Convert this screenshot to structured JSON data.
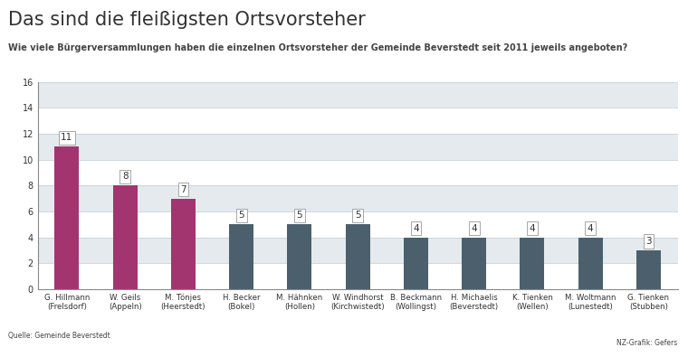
{
  "chart_data": {
    "type": "bar",
    "title": "Das sind die fleißigsten Ortsvorsteher",
    "subtitle": "Wie viele Bürgerversammlungen haben die einzelnen Ortsvorsteher der Gemeinde Beverstedt seit 2011 jeweils angeboten?",
    "categories": [
      "G. Hillmann\n(Frelsdorf)",
      "W. Geils\n(Appeln)",
      "M. Tönjes\n(Heerstedt)",
      "H. Becker\n(Bokel)",
      "M. Hähnken\n(Hollen)",
      "W. Windhorst\n(Kirchwistedt)",
      "B. Beckmann\n(Wollingst)",
      "H. Michaelis\n(Beverstedt)",
      "K. Tienken\n(Wellen)",
      "M. Woltmann\n(Lunestedt)",
      "G. Tienken\n(Stubben)"
    ],
    "values": [
      11,
      8,
      7,
      5,
      5,
      5,
      4,
      4,
      4,
      4,
      3
    ],
    "colors": [
      "#a23570",
      "#a23570",
      "#a23570",
      "#4b606c",
      "#4b606c",
      "#4b606c",
      "#4b606c",
      "#4b606c",
      "#4b606c",
      "#4b606c",
      "#4b606c"
    ],
    "ylim": [
      0,
      16
    ],
    "yticks": [
      0,
      2,
      4,
      6,
      8,
      10,
      12,
      14,
      16
    ],
    "grid": true,
    "data_labels": true,
    "source": "Quelle: Gemeinde Beverstedt",
    "credit": "NZ-Grafik: Gefers"
  }
}
